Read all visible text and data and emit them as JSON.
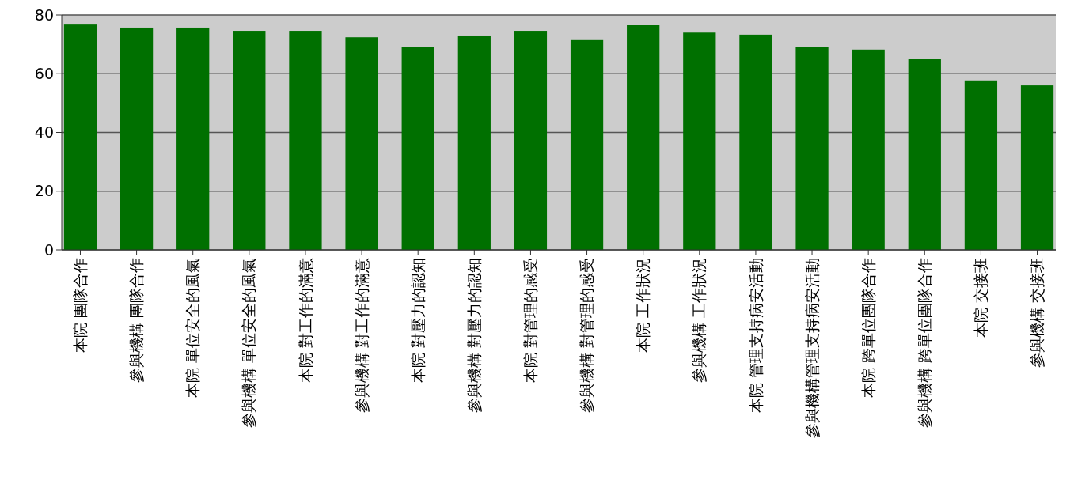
{
  "chart_data": {
    "type": "bar",
    "categories": [
      "本院 團隊合作",
      "參與機構 團隊合作",
      "本院 單位安全的風氣",
      "參與機構 單位安全的風氣",
      "本院 對工作的滿意",
      "參與機構 對工作的滿意",
      "本院 對壓力的認知",
      "參與機構 對壓力的認知",
      "本院 對管理的感受",
      "參與機構 對管理的感受",
      "本院 工作狀況",
      "參與機構 工作狀況",
      "本院 管理支持病安活動",
      "參與機構管理支持病安活動",
      "本院 跨單位團隊合作",
      "參與機構 跨單位團隊合作",
      "本院 交接班",
      "參與機構 交接班"
    ],
    "values": [
      77,
      75.7,
      75.7,
      74.6,
      74.6,
      72.4,
      69.2,
      73,
      74.6,
      71.7,
      76.5,
      74,
      73.3,
      69,
      68.2,
      65,
      57.7,
      56
    ],
    "color": "#007000",
    "ylim": [
      0,
      80
    ],
    "yticks": [
      0,
      20,
      40,
      60,
      80
    ],
    "grid": "y"
  }
}
